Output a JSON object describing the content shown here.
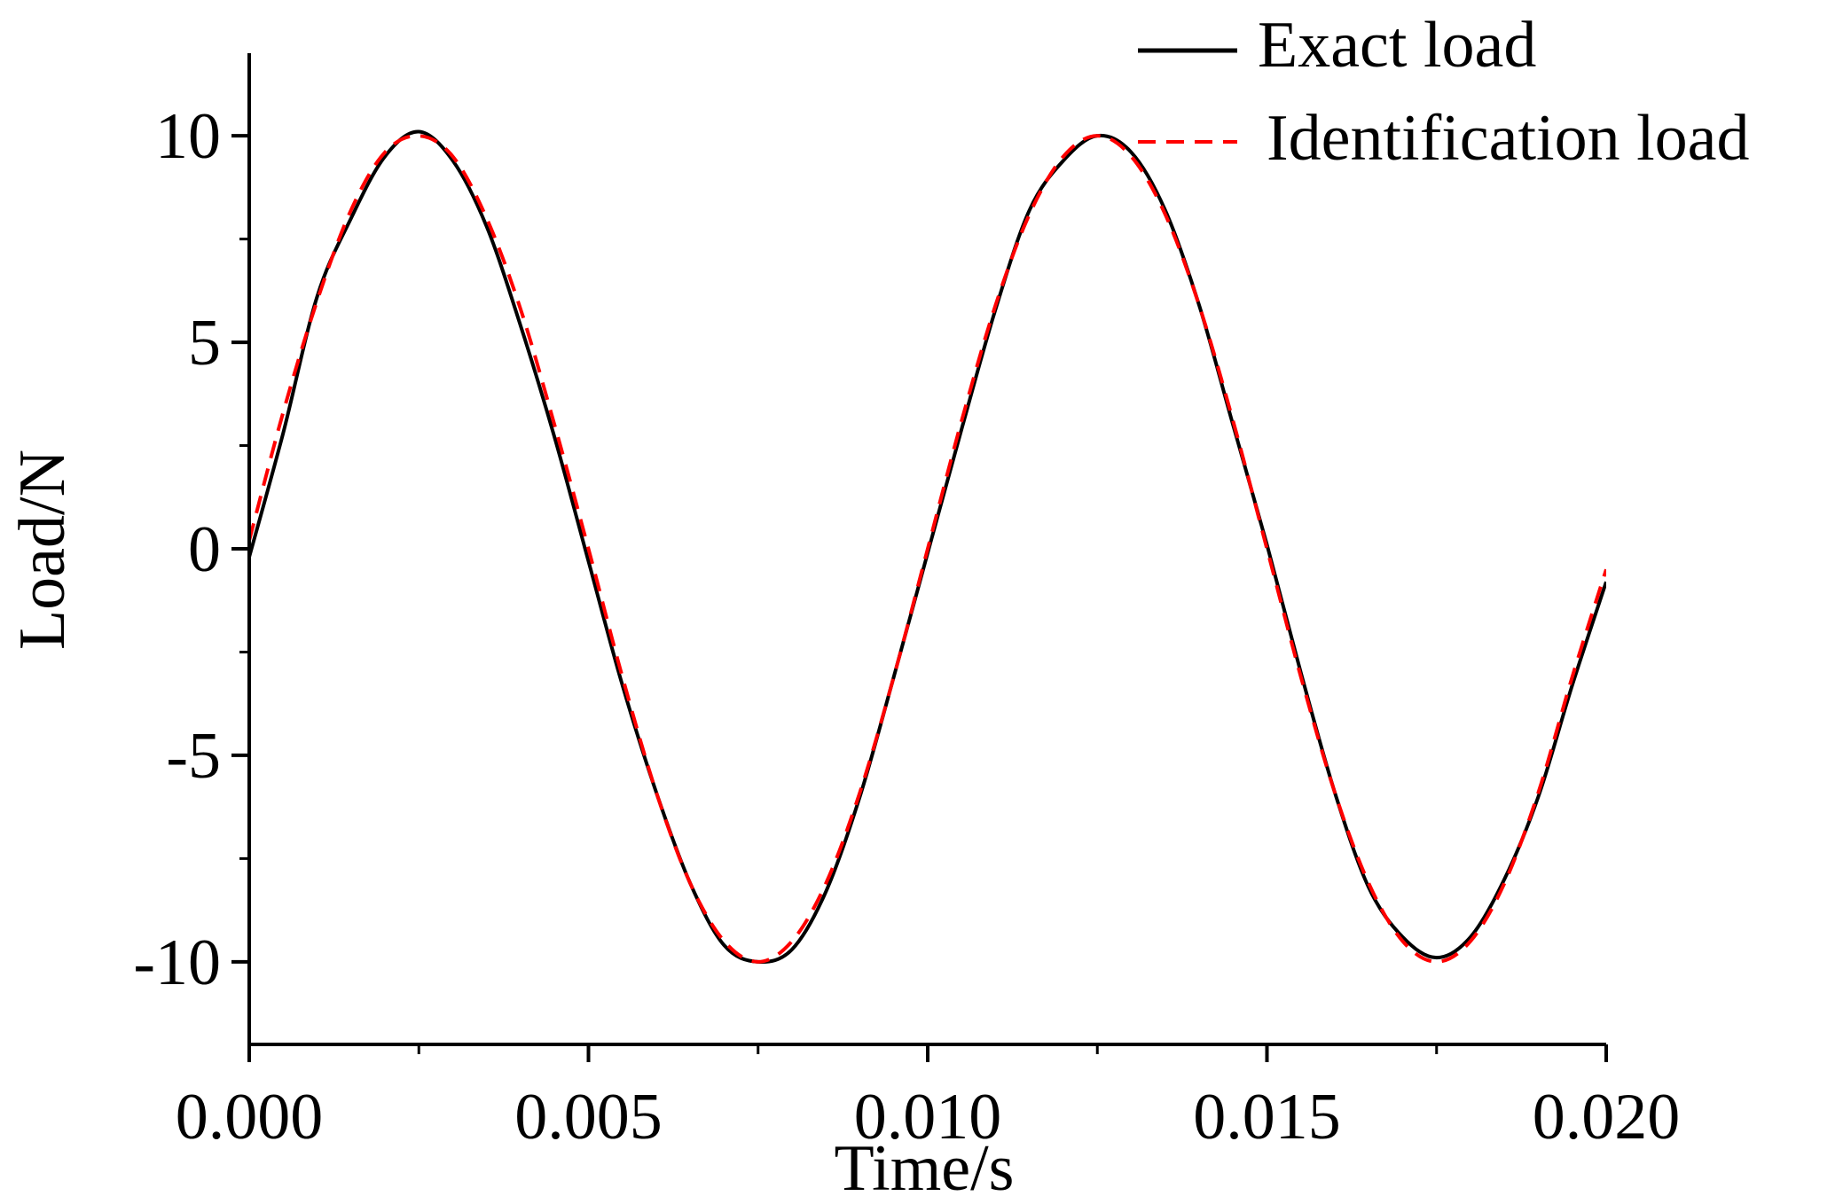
{
  "chart_data": {
    "type": "line",
    "xlabel": "Time/s",
    "ylabel": "Load/N",
    "xlim": [
      0.0,
      0.02
    ],
    "ylim": [
      -12,
      12
    ],
    "x_ticks": [
      0.0,
      0.005,
      0.01,
      0.015,
      0.02
    ],
    "x_tick_labels": [
      "0.000",
      "0.005",
      "0.010",
      "0.015",
      "0.020"
    ],
    "y_ticks": [
      -10,
      -5,
      0,
      5,
      10
    ],
    "y_tick_labels": [
      "-10",
      "-5",
      "0",
      "5",
      "10"
    ],
    "grid": false,
    "legend_position": "top-right",
    "series": [
      {
        "name": "Exact load",
        "color": "#000000",
        "dash": "solid",
        "x": [
          0.0,
          0.0005,
          0.001,
          0.0015,
          0.002,
          0.0025,
          0.003,
          0.0035,
          0.004,
          0.0045,
          0.005,
          0.0055,
          0.006,
          0.0065,
          0.007,
          0.0075,
          0.008,
          0.0085,
          0.009,
          0.0095,
          0.01,
          0.0105,
          0.011,
          0.0115,
          0.012,
          0.0125,
          0.013,
          0.0135,
          0.014,
          0.0145,
          0.015,
          0.0155,
          0.016,
          0.0165,
          0.017,
          0.0175,
          0.018,
          0.0185,
          0.019,
          0.0195,
          0.02
        ],
        "y": [
          -0.2,
          2.8,
          6.1,
          8.0,
          9.5,
          10.1,
          9.4,
          7.8,
          5.4,
          2.7,
          -0.3,
          -3.3,
          -5.9,
          -8.1,
          -9.6,
          -10.0,
          -9.7,
          -8.3,
          -6.0,
          -3.1,
          -0.1,
          2.9,
          5.8,
          8.2,
          9.4,
          10.0,
          9.6,
          8.2,
          5.9,
          3.0,
          0.1,
          -3.0,
          -5.9,
          -8.2,
          -9.4,
          -9.9,
          -9.4,
          -8.0,
          -6.0,
          -3.3,
          -0.8
        ]
      },
      {
        "name": "Identification load",
        "color": "#ff0000",
        "dash": "dashed",
        "x": [
          0.0,
          0.0005,
          0.001,
          0.0015,
          0.002,
          0.0025,
          0.003,
          0.0035,
          0.004,
          0.0045,
          0.005,
          0.0055,
          0.006,
          0.0065,
          0.007,
          0.0075,
          0.008,
          0.0085,
          0.009,
          0.0095,
          0.01,
          0.0105,
          0.011,
          0.0115,
          0.012,
          0.0125,
          0.013,
          0.0135,
          0.014,
          0.0145,
          0.015,
          0.0155,
          0.016,
          0.0165,
          0.017,
          0.0175,
          0.018,
          0.0185,
          0.019,
          0.0195,
          0.02
        ],
        "y": [
          0.2,
          3.3,
          6.0,
          8.2,
          9.6,
          10.0,
          9.5,
          8.0,
          5.8,
          3.0,
          0.0,
          -3.1,
          -5.9,
          -8.1,
          -9.5,
          -10.0,
          -9.5,
          -8.1,
          -5.9,
          -3.1,
          0.0,
          3.1,
          5.9,
          8.1,
          9.5,
          10.0,
          9.5,
          8.1,
          5.9,
          3.1,
          0.0,
          -3.1,
          -5.9,
          -8.1,
          -9.5,
          -10.0,
          -9.5,
          -8.1,
          -5.9,
          -3.1,
          -0.5
        ]
      }
    ]
  }
}
